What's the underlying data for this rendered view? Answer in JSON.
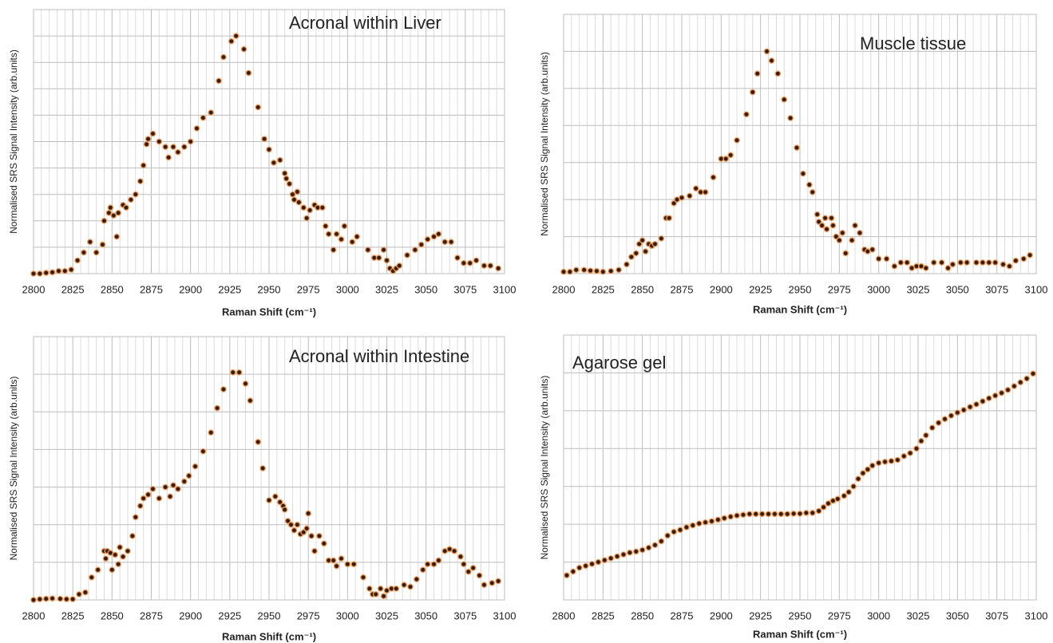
{
  "chart_data": [
    {
      "type": "scatter",
      "title": "Acronal within Liver",
      "xlabel": "Raman Shift (cm⁻¹)",
      "ylabel": "Normalised SRS Signal Intensity (arb.units)",
      "color": "#3a1a08",
      "x": [
        2800,
        2804,
        2808,
        2812,
        2816,
        2820,
        2824,
        2828,
        2832,
        2836,
        2840,
        2844,
        2845,
        2848,
        2849,
        2851,
        2853,
        2854,
        2857,
        2859,
        2862,
        2865,
        2868,
        2870,
        2872,
        2873,
        2876,
        2880,
        2884,
        2886,
        2889,
        2892,
        2896,
        2900,
        2904,
        2908,
        2913,
        2918,
        2921,
        2926,
        2929,
        2934,
        2937,
        2943,
        2947,
        2950,
        2953,
        2957,
        2960,
        2961,
        2963,
        2965,
        2966,
        2968,
        2969,
        2972,
        2974,
        2976,
        2979,
        2981,
        2984,
        2986,
        2988,
        2991,
        2993,
        2996,
        2998,
        3003,
        3006,
        3013,
        3017,
        3020,
        3023,
        3025,
        3027,
        3029,
        3031,
        3033,
        3038,
        3043,
        3047,
        3051,
        3055,
        3058,
        3062,
        3066,
        3070,
        3074,
        3078,
        3082,
        3087,
        3091,
        3096
      ],
      "values": [
        0,
        0,
        0.03,
        0.05,
        0.1,
        0.1,
        0.15,
        0.5,
        0.8,
        1.2,
        0.8,
        1.1,
        2.0,
        2.3,
        2.5,
        2.2,
        1.4,
        2.3,
        2.6,
        2.5,
        2.8,
        3.0,
        3.5,
        4.1,
        4.9,
        5.1,
        5.3,
        5.0,
        4.8,
        4.4,
        4.8,
        4.6,
        4.8,
        5.0,
        5.5,
        5.9,
        6.1,
        7.3,
        8.2,
        8.8,
        9.0,
        8.5,
        7.6,
        6.3,
        5.1,
        4.7,
        4.2,
        4.3,
        3.8,
        3.6,
        3.4,
        3.0,
        2.8,
        3.1,
        2.7,
        2.5,
        2.1,
        2.4,
        2.6,
        2.5,
        2.5,
        1.8,
        1.5,
        0.9,
        1.5,
        1.3,
        1.8,
        1.2,
        1.4,
        0.9,
        0.6,
        0.6,
        0.9,
        0.5,
        0.2,
        0.1,
        0.2,
        0.3,
        0.7,
        0.9,
        1.1,
        1.3,
        1.4,
        1.5,
        1.2,
        1.2,
        0.6,
        0.4,
        0.4,
        0.5,
        0.3,
        0.3,
        0.2
      ],
      "xlim": [
        2800,
        3100
      ],
      "xticks": [
        2800,
        2825,
        2850,
        2875,
        2900,
        2925,
        2950,
        2975,
        3000,
        3025,
        3050,
        3075,
        3100
      ],
      "ylim": [
        0,
        10
      ],
      "yticks": [
        0,
        1,
        2,
        3,
        4,
        5,
        6,
        7,
        8,
        9,
        10
      ],
      "show_ytick_labels": false,
      "grid": true,
      "minor_grid": true
    },
    {
      "type": "scatter",
      "title": "Muscle tissue",
      "xlabel": "Raman Shift (cm⁻¹)",
      "ylabel": "Normalised SRS Signal Intensity (arb.units)",
      "color": "#3a1a08",
      "x": [
        2800,
        2804,
        2808,
        2813,
        2817,
        2821,
        2825,
        2830,
        2835,
        2840,
        2843,
        2846,
        2848,
        2850,
        2852,
        2854,
        2856,
        2858,
        2862,
        2865,
        2867,
        2870,
        2872,
        2875,
        2880,
        2884,
        2887,
        2890,
        2895,
        2900,
        2903,
        2906,
        2910,
        2916,
        2920,
        2923,
        2929,
        2932,
        2936,
        2940,
        2944,
        2948,
        2952,
        2956,
        2958,
        2961,
        2962,
        2964,
        2966,
        2967,
        2970,
        2971,
        2973,
        2975,
        2977,
        2979,
        2983,
        2985,
        2988,
        2991,
        2993,
        2996,
        3000,
        3005,
        3010,
        3014,
        3018,
        3021,
        3024,
        3027,
        3030,
        3035,
        3040,
        3044,
        3047,
        3052,
        3056,
        3062,
        3066,
        3070,
        3074,
        3079,
        3083,
        3087,
        3092,
        3096
      ],
      "values": [
        0.05,
        0.05,
        0.1,
        0.1,
        0.08,
        0.07,
        0.05,
        0.07,
        0.1,
        0.25,
        0.45,
        0.55,
        0.8,
        0.9,
        0.6,
        0.8,
        0.75,
        0.8,
        0.95,
        1.5,
        1.5,
        1.9,
        2.0,
        2.05,
        2.1,
        2.3,
        2.2,
        2.2,
        2.6,
        3.1,
        3.1,
        3.2,
        3.6,
        4.3,
        4.9,
        5.4,
        6.0,
        5.75,
        5.4,
        4.7,
        4.2,
        3.4,
        2.7,
        2.4,
        2.2,
        1.6,
        1.4,
        1.3,
        1.5,
        1.2,
        1.5,
        1.3,
        1.0,
        0.9,
        1.1,
        0.55,
        0.9,
        1.3,
        1.1,
        0.65,
        0.6,
        0.65,
        0.4,
        0.4,
        0.2,
        0.3,
        0.3,
        0.15,
        0.2,
        0.2,
        0.15,
        0.3,
        0.3,
        0.15,
        0.25,
        0.3,
        0.3,
        0.3,
        0.3,
        0.3,
        0.3,
        0.25,
        0.2,
        0.35,
        0.4,
        0.5
      ],
      "xlim": [
        2800,
        3100
      ],
      "xticks": [
        2800,
        2825,
        2850,
        2875,
        2900,
        2925,
        2950,
        2975,
        3000,
        3025,
        3050,
        3075,
        3100
      ],
      "ylim": [
        0,
        7
      ],
      "yticks": [
        0,
        1,
        2,
        3,
        4,
        5,
        6,
        7
      ],
      "show_ytick_labels": false,
      "grid": true,
      "minor_grid": true
    },
    {
      "type": "scatter",
      "title": "Acronal within Intestine",
      "xlabel": "Raman Shift (cm⁻¹)",
      "ylabel": "Normalised SRS Signal Intensity (arb.units)",
      "color": "#3a1a08",
      "x": [
        2800,
        2804,
        2808,
        2812,
        2817,
        2821,
        2825,
        2829,
        2833,
        2837,
        2841,
        2845,
        2846,
        2847,
        2849,
        2850,
        2852,
        2854,
        2855,
        2857,
        2860,
        2863,
        2865,
        2868,
        2870,
        2873,
        2876,
        2880,
        2884,
        2887,
        2889,
        2892,
        2896,
        2899,
        2903,
        2908,
        2913,
        2917,
        2921,
        2927,
        2931,
        2935,
        2938,
        2943,
        2946,
        2950,
        2954,
        2957,
        2959,
        2960,
        2962,
        2964,
        2966,
        2968,
        2970,
        2972,
        2974,
        2975,
        2977,
        2979,
        2982,
        2985,
        2988,
        2991,
        2993,
        2996,
        3000,
        3004,
        3010,
        3014,
        3016,
        3018,
        3021,
        3023,
        3025,
        3028,
        3031,
        3036,
        3040,
        3044,
        3048,
        3051,
        3055,
        3058,
        3062,
        3065,
        3068,
        3072,
        3074,
        3077,
        3080,
        3084,
        3087,
        3092,
        3096
      ],
      "values": [
        0,
        0.02,
        0.03,
        0.04,
        0.03,
        0.02,
        0.02,
        0.15,
        0.2,
        0.6,
        0.8,
        1.3,
        1.1,
        1.3,
        1.25,
        0.8,
        1.2,
        0.95,
        1.4,
        1.15,
        1.3,
        1.7,
        2.2,
        2.5,
        2.7,
        2.8,
        2.95,
        2.7,
        3.0,
        2.75,
        3.05,
        2.95,
        3.15,
        3.3,
        3.55,
        3.95,
        4.45,
        5.1,
        5.6,
        6.05,
        6.05,
        5.75,
        5.3,
        4.2,
        3.5,
        2.65,
        2.75,
        2.6,
        2.5,
        2.4,
        2.1,
        2.0,
        1.85,
        2.0,
        1.75,
        1.8,
        1.9,
        2.3,
        1.7,
        1.3,
        1.7,
        1.5,
        1.05,
        1.05,
        0.9,
        1.1,
        0.95,
        0.95,
        0.6,
        0.3,
        0.15,
        0.15,
        0.3,
        0.1,
        0.25,
        0.3,
        0.3,
        0.4,
        0.35,
        0.55,
        0.8,
        0.95,
        0.95,
        1.05,
        1.3,
        1.35,
        1.3,
        1.15,
        0.95,
        0.75,
        0.85,
        0.65,
        0.4,
        0.45,
        0.5
      ],
      "xlim": [
        2800,
        3100
      ],
      "xticks": [
        2800,
        2825,
        2850,
        2875,
        2900,
        2925,
        2950,
        2975,
        3000,
        3025,
        3050,
        3075,
        3100
      ],
      "ylim": [
        0,
        7
      ],
      "yticks": [
        0,
        1,
        2,
        3,
        4,
        5,
        6,
        7
      ],
      "show_ytick_labels": false,
      "grid": true,
      "minor_grid": true
    },
    {
      "type": "scatter",
      "title": "Agarose gel",
      "xlabel": "Raman Shift (cm⁻¹)",
      "ylabel": "Normalised SRS Signal Intensity (arb.units)",
      "color": "#3a1a08",
      "x": [
        2802,
        2806,
        2810,
        2814,
        2818,
        2822,
        2826,
        2830,
        2834,
        2838,
        2842,
        2846,
        2850,
        2854,
        2858,
        2862,
        2866,
        2870,
        2874,
        2878,
        2882,
        2886,
        2890,
        2894,
        2898,
        2902,
        2906,
        2910,
        2914,
        2918,
        2922,
        2926,
        2930,
        2934,
        2938,
        2942,
        2946,
        2950,
        2954,
        2958,
        2962,
        2965,
        2968,
        2971,
        2974,
        2978,
        2981,
        2984,
        2987,
        2990,
        2993,
        2996,
        3000,
        3004,
        3008,
        3012,
        3016,
        3020,
        3024,
        3027,
        3030,
        3034,
        3038,
        3042,
        3046,
        3050,
        3054,
        3058,
        3062,
        3066,
        3070,
        3074,
        3078,
        3082,
        3086,
        3090,
        3094,
        3098
      ],
      "values": [
        0.65,
        0.75,
        0.85,
        0.9,
        0.95,
        1.0,
        1.05,
        1.1,
        1.15,
        1.2,
        1.25,
        1.28,
        1.32,
        1.38,
        1.45,
        1.55,
        1.7,
        1.8,
        1.85,
        1.92,
        1.97,
        2.02,
        2.05,
        2.08,
        2.12,
        2.16,
        2.2,
        2.23,
        2.25,
        2.27,
        2.27,
        2.27,
        2.27,
        2.27,
        2.27,
        2.27,
        2.28,
        2.28,
        2.3,
        2.3,
        2.35,
        2.45,
        2.55,
        2.62,
        2.67,
        2.75,
        2.85,
        3.0,
        3.2,
        3.35,
        3.45,
        3.55,
        3.62,
        3.65,
        3.67,
        3.7,
        3.8,
        3.88,
        4.0,
        4.2,
        4.35,
        4.55,
        4.68,
        4.78,
        4.87,
        4.95,
        5.02,
        5.1,
        5.17,
        5.25,
        5.33,
        5.4,
        5.47,
        5.55,
        5.65,
        5.75,
        5.85,
        5.98
      ],
      "xlim": [
        2800,
        3100
      ],
      "xticks": [
        2800,
        2825,
        2850,
        2875,
        2900,
        2925,
        2950,
        2975,
        3000,
        3025,
        3050,
        3075,
        3100
      ],
      "ylim": [
        0,
        7
      ],
      "yticks": [
        0,
        1,
        2,
        3,
        4,
        5,
        6,
        7
      ],
      "show_ytick_labels": false,
      "grid": true,
      "minor_grid": true
    }
  ]
}
